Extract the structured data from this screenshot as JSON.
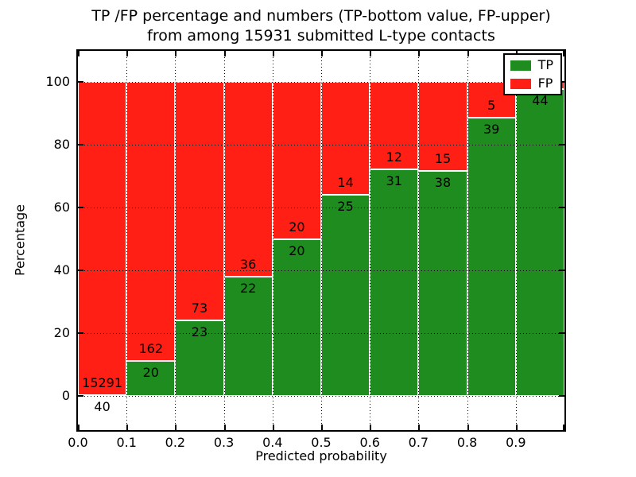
{
  "chart_data": {
    "type": "bar",
    "stacked": true,
    "title": "TP /FP percentage and numbers (TP-bottom value, FP-upper)",
    "subtitle": "from among 15931 submitted L-type contacts",
    "xlabel": "Predicted probability",
    "ylabel": "Percentage",
    "xlim": [
      0.0,
      1.0
    ],
    "ylim": [
      -11,
      110
    ],
    "grid": "dotted",
    "x_tick_labels": [
      "0.0",
      "0.1",
      "0.2",
      "0.3",
      "0.4",
      "0.5",
      "0.6",
      "0.7",
      "0.8",
      "0.9"
    ],
    "y_tick_labels": [
      "0",
      "20",
      "40",
      "60",
      "80",
      "100"
    ],
    "y_tick_values": [
      0,
      20,
      40,
      60,
      80,
      100
    ],
    "categories": [
      "0.0-0.1",
      "0.1-0.2",
      "0.2-0.3",
      "0.3-0.4",
      "0.4-0.5",
      "0.5-0.6",
      "0.6-0.7",
      "0.7-0.8",
      "0.8-0.9",
      "0.9-1.0"
    ],
    "series": [
      {
        "name": "TP",
        "counts": [
          40,
          20,
          23,
          22,
          20,
          25,
          31,
          38,
          39,
          44
        ],
        "pct": [
          0.26,
          10.99,
          23.96,
          37.93,
          50.0,
          64.1,
          72.09,
          71.7,
          88.64,
          97.78
        ]
      },
      {
        "name": "FP",
        "counts": [
          15291,
          162,
          73,
          36,
          20,
          14,
          12,
          15,
          5,
          null
        ],
        "pct": [
          99.74,
          89.01,
          76.04,
          62.07,
          50.0,
          35.9,
          27.91,
          28.3,
          11.36,
          2.22
        ]
      }
    ],
    "bar_value_labels": {
      "tp": [
        "40",
        "20",
        "23",
        "22",
        "20",
        "25",
        "31",
        "38",
        "39",
        "44"
      ],
      "fp": [
        "15291",
        "162",
        "73",
        "36",
        "20",
        "14",
        "12",
        "15",
        "5",
        ""
      ]
    },
    "legend": {
      "position": "upper right",
      "entries": [
        {
          "label": "TP",
          "color": "#1e8c1e"
        },
        {
          "label": "FP",
          "color": "#ff1f14"
        }
      ]
    },
    "colors": {
      "tp": "#1e8c1e",
      "fp": "#ff1f14",
      "axis": "#000000",
      "background": "#ffffff"
    }
  }
}
